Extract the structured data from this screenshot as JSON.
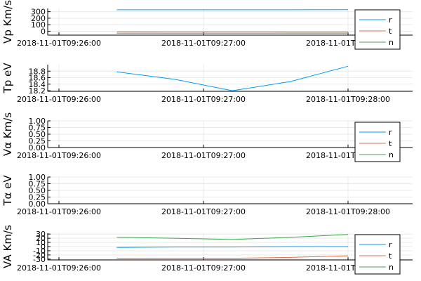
{
  "chart_data": [
    {
      "type": "line",
      "ylabel": "Vp Km/s",
      "x": [
        "2018-11-01T09:26:24",
        "2018-11-01T09:26:48",
        "2018-11-01T09:27:12",
        "2018-11-01T09:27:36",
        "2018-11-01T09:28:00"
      ],
      "xticks": [
        "2018-11-01T09:26:00",
        "2018-11-01T09:27:00",
        "2018-11-01T09:28:00"
      ],
      "yticks": [
        0,
        100,
        200,
        300
      ],
      "ylim": [
        -60,
        350
      ],
      "legend": "top-right",
      "grid": true,
      "series": [
        {
          "name": "r",
          "color": "#009af9",
          "values": [
            330,
            330,
            330,
            330,
            332
          ]
        },
        {
          "name": "t",
          "color": "#e26f46",
          "values": [
            -30,
            -30,
            -30,
            -30,
            -30
          ]
        },
        {
          "name": "n",
          "color": "#3da44d",
          "values": [
            -10,
            -11,
            -11,
            -12,
            -12
          ]
        }
      ]
    },
    {
      "type": "line",
      "ylabel": "Tp eV",
      "x": [
        "2018-11-01T09:26:24",
        "2018-11-01T09:26:48",
        "2018-11-01T09:27:12",
        "2018-11-01T09:27:36",
        "2018-11-01T09:28:00"
      ],
      "xticks": [
        "2018-11-01T09:26:00",
        "2018-11-01T09:27:00",
        "2018-11-01T09:28:00"
      ],
      "yticks": [
        18.2,
        18.4,
        18.6,
        18.8
      ],
      "ylim": [
        18.18,
        19.0
      ],
      "legend": "none",
      "grid": true,
      "series": [
        {
          "name": "",
          "color": "#009af9",
          "values": [
            18.78,
            18.55,
            18.2,
            18.48,
            18.95
          ]
        }
      ]
    },
    {
      "type": "line",
      "ylabel": "Vα Km/s",
      "x": [],
      "xticks": [
        "2018-11-01T09:26:00",
        "2018-11-01T09:27:00",
        "2018-11-01T09:28:00"
      ],
      "yticks": [
        0.0,
        0.25,
        0.5,
        0.75,
        1.0
      ],
      "ytick_labels": [
        "0.00",
        "0.25",
        "0.50",
        "0.75",
        "1.00"
      ],
      "ylim": [
        0,
        1
      ],
      "legend": "top-right",
      "grid": true,
      "series": [
        {
          "name": "r",
          "color": "#009af9",
          "values": []
        },
        {
          "name": "t",
          "color": "#e26f46",
          "values": []
        },
        {
          "name": "n",
          "color": "#3da44d",
          "values": []
        }
      ]
    },
    {
      "type": "line",
      "ylabel": "Tα eV",
      "x": [],
      "xticks": [
        "2018-11-01T09:26:00",
        "2018-11-01T09:27:00",
        "2018-11-01T09:28:00"
      ],
      "yticks": [
        0.0,
        0.25,
        0.5,
        0.75,
        1.0
      ],
      "ytick_labels": [
        "0.00",
        "0.25",
        "0.50",
        "0.75",
        "1.00"
      ],
      "ylim": [
        0,
        1
      ],
      "legend": "none",
      "grid": true,
      "series": []
    },
    {
      "type": "line",
      "ylabel": "VA Km/s",
      "x": [
        "2018-11-01T09:26:24",
        "2018-11-01T09:26:48",
        "2018-11-01T09:27:12",
        "2018-11-01T09:27:36",
        "2018-11-01T09:28:00"
      ],
      "xticks": [
        "2018-11-01T09:26:00",
        "2018-11-01T09:27:00",
        "2018-11-01T09:28:00"
      ],
      "yticks": [
        -30,
        -20,
        -10,
        0,
        10,
        20,
        30
      ],
      "ylim": [
        -32,
        32
      ],
      "legend": "top-right",
      "grid": true,
      "series": [
        {
          "name": "r",
          "color": "#009af9",
          "values": [
            -2,
            -1,
            -1,
            0,
            0
          ]
        },
        {
          "name": "t",
          "color": "#e26f46",
          "values": [
            -28,
            -28,
            -28,
            -26,
            -22
          ]
        },
        {
          "name": "n",
          "color": "#3da44d",
          "values": [
            22,
            20,
            17,
            22,
            29
          ]
        }
      ]
    }
  ]
}
